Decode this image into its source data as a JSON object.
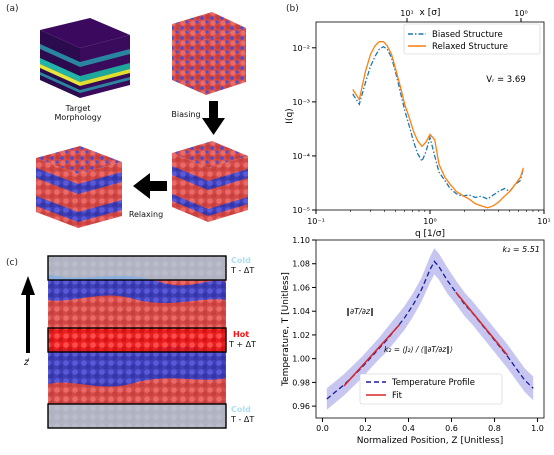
{
  "panel_labels": {
    "a": "(a)",
    "b": "(b)",
    "c": "(c)"
  },
  "panel_a": {
    "target_label": "Target\nMorphology",
    "biasing_label": "Biasing",
    "relaxing_label": "Relaxing"
  },
  "panel_c": {
    "cold_top_label": "Cold",
    "cold_top_temp": "T - ΔT",
    "hot_label": "Hot",
    "hot_temp": "T + ΔT",
    "cold_bottom_label": "Cold",
    "cold_bottom_temp": "T - ΔT",
    "axis_label": "z⃗"
  },
  "colors": {
    "blue": "#1f77b4",
    "orange": "#ff7f0e",
    "red_beads": "#e0504e",
    "blue_beads": "#4f4fd0",
    "hot": "#ff1010",
    "cold": "#9fd3ea"
  },
  "chart_data": [
    {
      "type": "line",
      "xlabel": "q [1/σ]",
      "ylabel": "I(q)",
      "top_xlabel": "x [σ]",
      "xscale": "log",
      "yscale": "log",
      "xlim": [
        0.1,
        10
      ],
      "ylim": [
        1e-05,
        0.03
      ],
      "x_ticks": [
        "10⁻¹",
        "10⁰",
        "10¹"
      ],
      "y_ticks": [
        "10⁻⁵",
        "10⁻⁴",
        "10⁻³",
        "10⁻²"
      ],
      "top_ticks": [
        "10¹",
        "10⁰"
      ],
      "annotation": "Vᵣ = 3.69",
      "legend_position": "top-right",
      "series": [
        {
          "name": "Biased Structure",
          "style": "dash-dot",
          "color": "#1f77b4",
          "x": [
            0.21,
            0.24,
            0.27,
            0.3,
            0.33,
            0.36,
            0.39,
            0.42,
            0.46,
            0.5,
            0.55,
            0.6,
            0.66,
            0.72,
            0.78,
            0.85,
            0.92,
            1.0,
            1.1,
            1.2,
            1.35,
            1.5,
            1.7,
            1.9,
            2.2,
            2.5,
            2.8,
            3.2,
            3.6,
            4.0,
            4.5,
            5.0,
            5.6,
            6.2,
            6.6
          ],
          "y": [
            0.0014,
            0.0009,
            0.0022,
            0.0045,
            0.007,
            0.0095,
            0.0105,
            0.0095,
            0.0065,
            0.0035,
            0.0015,
            0.0007,
            0.00035,
            0.00018,
            0.00011,
            8e-05,
            0.00012,
            0.00022,
            0.0001,
            5e-05,
            3.5e-05,
            2.5e-05,
            2e-05,
            1.8e-05,
            1.9e-05,
            1.7e-05,
            1.8e-05,
            1.6e-05,
            1.9e-05,
            2.2e-05,
            2.5e-05,
            2.2e-05,
            3e-05,
            3.5e-05,
            6e-05
          ]
        },
        {
          "name": "Relaxed Structure",
          "style": "solid",
          "color": "#ff7f0e",
          "x": [
            0.21,
            0.24,
            0.27,
            0.3,
            0.33,
            0.36,
            0.39,
            0.42,
            0.46,
            0.5,
            0.55,
            0.6,
            0.66,
            0.72,
            0.78,
            0.85,
            0.92,
            1.0,
            1.1,
            1.2,
            1.35,
            1.5,
            1.7,
            1.9,
            2.2,
            2.5,
            2.8,
            3.2,
            3.6,
            4.0,
            4.5,
            5.0,
            5.6,
            6.2,
            6.6
          ],
          "y": [
            0.0017,
            0.0011,
            0.0035,
            0.0075,
            0.011,
            0.013,
            0.013,
            0.011,
            0.0075,
            0.004,
            0.0019,
            0.0009,
            0.0005,
            0.00028,
            0.00019,
            0.00015,
            0.00018,
            0.00025,
            0.0002,
            7e-05,
            4e-05,
            3e-05,
            2.2e-05,
            1.9e-05,
            1.6e-05,
            1.3e-05,
            1.2e-05,
            1.1e-05,
            1.2e-05,
            1.4e-05,
            1.8e-05,
            2.2e-05,
            3e-05,
            4e-05,
            6e-05
          ]
        }
      ]
    },
    {
      "type": "line",
      "xlabel": "Normalized Position, Z [Unitless]",
      "ylabel": "Temperature, T [Unitless]",
      "xlim": [
        -0.03,
        1.03
      ],
      "ylim": [
        0.95,
        1.1
      ],
      "x_ticks": [
        "0.0",
        "0.2",
        "0.4",
        "0.6",
        "0.8",
        "1.0"
      ],
      "y_ticks": [
        "0.96",
        "0.98",
        "1.00",
        "1.02",
        "1.04",
        "1.06",
        "1.08",
        "1.10"
      ],
      "annotation_kz": "k₂ =  5.51",
      "annotation_grad": "‖∂T/∂z‖",
      "annotation_formula": "k₂ = ⟨J₂⟩ / ⟨‖∂T/∂z‖⟩",
      "legend_position": "bottom-center",
      "series": [
        {
          "name": "Temperature Profile",
          "style": "dashed",
          "color": "#1a1aa0",
          "x": [
            0.02,
            0.06,
            0.1,
            0.14,
            0.18,
            0.22,
            0.26,
            0.3,
            0.34,
            0.38,
            0.42,
            0.46,
            0.5,
            0.52,
            0.54,
            0.58,
            0.62,
            0.66,
            0.7,
            0.74,
            0.78,
            0.82,
            0.86,
            0.9,
            0.94,
            0.98
          ],
          "y": [
            0.966,
            0.972,
            0.978,
            0.985,
            0.992,
            1.0,
            1.008,
            1.016,
            1.025,
            1.034,
            1.045,
            1.058,
            1.075,
            1.082,
            1.078,
            1.066,
            1.056,
            1.046,
            1.038,
            1.029,
            1.02,
            1.011,
            1.002,
            0.992,
            0.982,
            0.975
          ]
        },
        {
          "name": "Fit",
          "style": "solid",
          "color": "#d62728",
          "segments": [
            {
              "x": [
                0.1,
                0.36
              ],
              "y": [
                0.977,
                1.029
              ]
            },
            {
              "x": [
                0.62,
                0.86
              ],
              "y": [
                1.056,
                1.003
              ]
            }
          ]
        },
        {
          "name": "band",
          "style": "fill",
          "color": "#8080e0",
          "upper": [
            0.975,
            0.981,
            0.987,
            0.994,
            1.001,
            1.009,
            1.017,
            1.026,
            1.035,
            1.044,
            1.055,
            1.068,
            1.086,
            1.093,
            1.089,
            1.077,
            1.066,
            1.056,
            1.048,
            1.039,
            1.03,
            1.021,
            1.012,
            1.002,
            0.992,
            0.985
          ],
          "lower": [
            0.957,
            0.963,
            0.969,
            0.976,
            0.983,
            0.991,
            0.999,
            1.006,
            1.015,
            1.024,
            1.035,
            1.048,
            1.064,
            1.071,
            1.067,
            1.055,
            1.046,
            1.036,
            1.028,
            1.019,
            1.01,
            1.001,
            0.992,
            0.982,
            0.972,
            0.965
          ]
        }
      ]
    }
  ]
}
